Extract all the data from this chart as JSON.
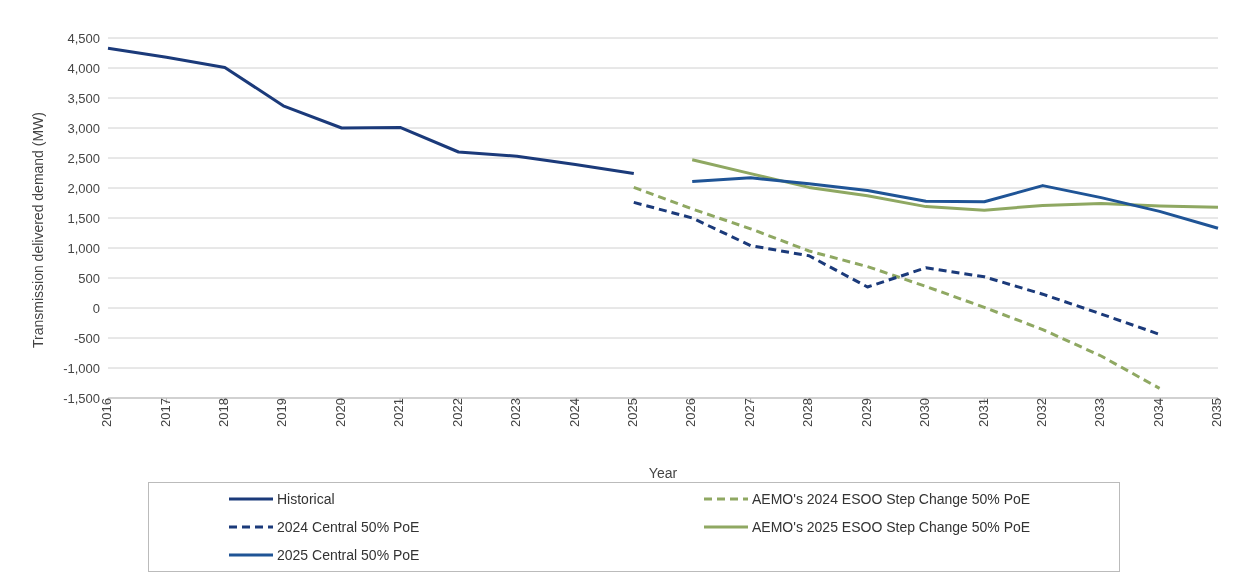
{
  "chart_data": {
    "type": "line",
    "xlabel": "Year",
    "ylabel": "Transmission delivered demand (MW)",
    "categories": [
      "2016",
      "2017",
      "2018",
      "2019",
      "2020",
      "2021",
      "2022",
      "2023",
      "2024",
      "2025",
      "2026",
      "2027",
      "2028",
      "2029",
      "2030",
      "2031",
      "2032",
      "2033",
      "2034",
      "2035"
    ],
    "series": [
      {
        "name": "Historical",
        "color": "#1b3a7a",
        "line_style": "solid",
        "values": [
          4330,
          4180,
          4010,
          3370,
          3000,
          3010,
          2600,
          2530,
          2390,
          2240,
          null,
          null,
          null,
          null,
          null,
          null,
          null,
          null,
          null,
          null
        ]
      },
      {
        "name": "AEMO's 2024 ESOO Step Change 50% PoE",
        "color": "#8fa862",
        "line_style": "dashed",
        "values": [
          null,
          null,
          null,
          null,
          null,
          null,
          null,
          null,
          null,
          2010,
          1650,
          1320,
          950,
          690,
          360,
          10,
          -360,
          -800,
          -1340,
          null
        ]
      },
      {
        "name": "2024 Central 50% PoE",
        "color": "#1b3a7a",
        "line_style": "dashed",
        "values": [
          null,
          null,
          null,
          null,
          null,
          null,
          null,
          null,
          null,
          1760,
          1500,
          1040,
          870,
          350,
          670,
          520,
          230,
          -100,
          -440,
          null
        ]
      },
      {
        "name": "AEMO's 2025 ESOO Step Change 50% PoE",
        "color": "#8fa862",
        "line_style": "solid",
        "values": [
          null,
          null,
          null,
          null,
          null,
          null,
          null,
          null,
          null,
          null,
          2470,
          2240,
          2010,
          1870,
          1690,
          1630,
          1710,
          1740,
          1700,
          1680
        ]
      },
      {
        "name": "2025 Central 50% PoE",
        "color": "#1f5496",
        "line_style": "solid",
        "values": [
          null,
          null,
          null,
          null,
          null,
          null,
          null,
          null,
          null,
          null,
          2110,
          2170,
          2070,
          1960,
          1780,
          1770,
          2040,
          1840,
          1610,
          1330
        ]
      }
    ],
    "ylim": [
      -1500,
      4500
    ],
    "yticks": [
      {
        "value": -1500,
        "label": "-1,500"
      },
      {
        "value": -1000,
        "label": "-1,000"
      },
      {
        "value": -500,
        "label": "-500"
      },
      0,
      500,
      {
        "value": 1000,
        "label": "1,000"
      },
      {
        "value": 1500,
        "label": "1,500"
      },
      {
        "value": 2000,
        "label": "2,000"
      },
      {
        "value": 2500,
        "label": "2,500"
      },
      {
        "value": 3000,
        "label": "3,000"
      },
      {
        "value": 3500,
        "label": "3,500"
      },
      {
        "value": 4000,
        "label": "4,000"
      },
      {
        "value": 4500,
        "label": "4,500"
      }
    ],
    "grid": "y",
    "legend": "bottom",
    "marker": "none"
  }
}
